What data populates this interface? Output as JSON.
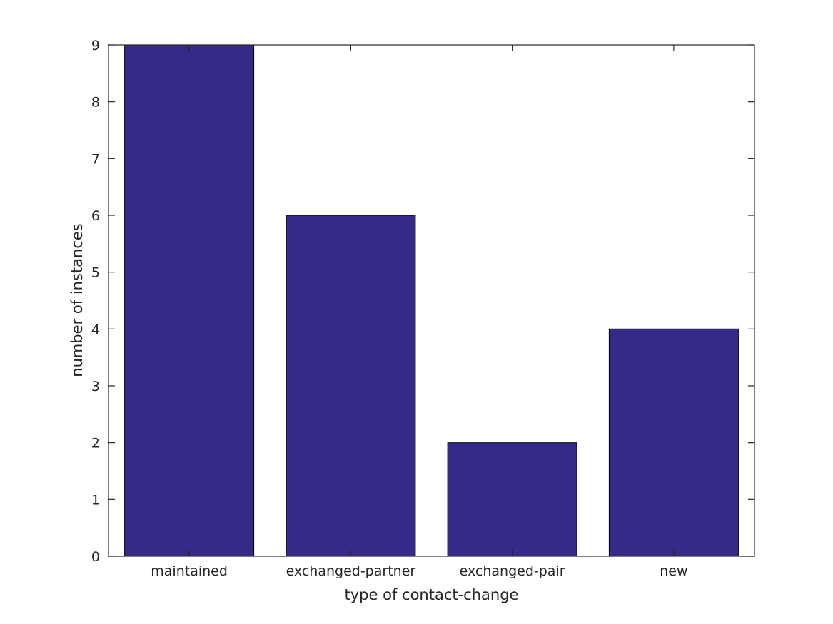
{
  "chart_data": {
    "type": "bar",
    "title": "",
    "categories": [
      "maintained",
      "exchanged-partner",
      "exchanged-pair",
      "new"
    ],
    "values": [
      9,
      6,
      2,
      4
    ],
    "xlabel": "type of contact-change",
    "ylabel": "number of instances",
    "ylim": [
      0,
      9
    ],
    "yticks": [
      0,
      1,
      2,
      3,
      4,
      5,
      6,
      7,
      8,
      9
    ],
    "bar_width_fraction": 0.8,
    "grid": false,
    "legend": null,
    "colors": {
      "bar_fill": "#352A87",
      "bar_edge": "#000000",
      "axis": "#262626",
      "text": "#262626",
      "background": "#ffffff"
    }
  }
}
